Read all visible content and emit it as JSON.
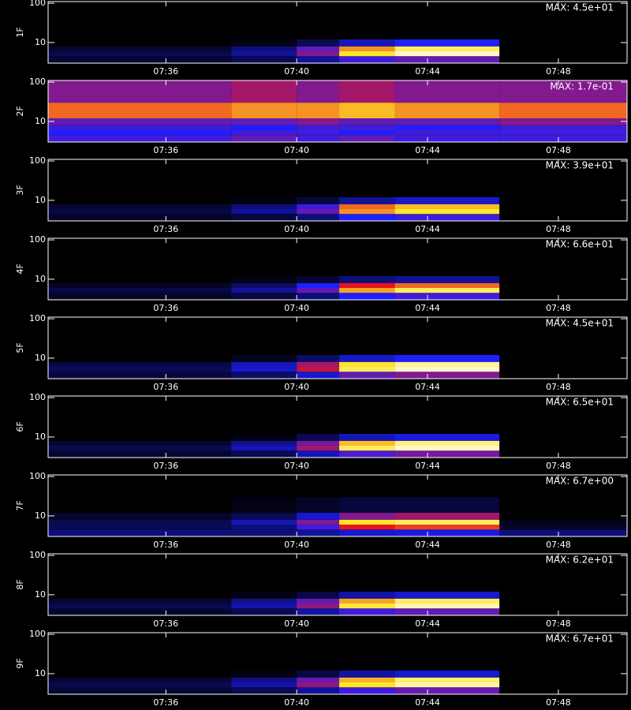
{
  "chart_data": [
    {
      "type": "heatmap",
      "ylabel": "1F",
      "annotation": "MAX: 4.5e+01",
      "log_y": true,
      "xlim": [
        32.4,
        50.1
      ],
      "xticks": [
        {
          "value": 36,
          "label": "07:36"
        },
        {
          "value": 40,
          "label": "07:40"
        },
        {
          "value": 44,
          "label": "07:44"
        },
        {
          "value": 48,
          "label": "07:48"
        }
      ],
      "ylim": [
        3,
        110
      ],
      "yticks": [
        10,
        100
      ],
      "x_edges": [
        32.4,
        38,
        40,
        41.3,
        43,
        46.2,
        50.1
      ],
      "y_edges": [
        3,
        4.5,
        6,
        8,
        12,
        30,
        110
      ],
      "z": [
        [
          0.05,
          0.08,
          0.15,
          0.3,
          0.35,
          0
        ],
        [
          0.08,
          0.15,
          0.4,
          0.8,
          0.95,
          0
        ],
        [
          0.05,
          0.12,
          0.35,
          0.7,
          0.85,
          0
        ],
        [
          0,
          0.02,
          0.08,
          0.18,
          0.25,
          0
        ],
        [
          0,
          0,
          0,
          0,
          0,
          0
        ],
        [
          0,
          0,
          0,
          0,
          0,
          0
        ]
      ]
    },
    {
      "type": "heatmap",
      "ylabel": "2F",
      "annotation": "MAX: 1.7e-01",
      "log_y": true,
      "xlim": [
        32.4,
        50.1
      ],
      "xticks": [
        {
          "value": 36,
          "label": "07:36"
        },
        {
          "value": 40,
          "label": "07:40"
        },
        {
          "value": 44,
          "label": "07:44"
        },
        {
          "value": 48,
          "label": "07:48"
        }
      ],
      "ylim": [
        3,
        110
      ],
      "yticks": [
        10,
        100
      ],
      "x_edges": [
        32.4,
        38,
        40,
        41.3,
        43,
        46.2,
        50.1
      ],
      "y_edges": [
        3,
        4.5,
        6,
        8,
        12,
        30,
        110
      ],
      "z": [
        [
          0.3,
          0.35,
          0.3,
          0.35,
          0.3,
          0.3
        ],
        [
          0.25,
          0.3,
          0.3,
          0.25,
          0.3,
          0.3
        ],
        [
          0.3,
          0.25,
          0.3,
          0.3,
          0.25,
          0.3
        ],
        [
          0.35,
          0.35,
          0.4,
          0.35,
          0.35,
          0.4
        ],
        [
          0.65,
          0.7,
          0.7,
          0.75,
          0.7,
          0.65
        ],
        [
          0.4,
          0.45,
          0.4,
          0.45,
          0.4,
          0.4
        ]
      ]
    },
    {
      "type": "heatmap",
      "ylabel": "3F",
      "annotation": "MAX: 3.9e+01",
      "log_y": true,
      "xlim": [
        32.4,
        50.1
      ],
      "xticks": [
        {
          "value": 36,
          "label": "07:36"
        },
        {
          "value": 40,
          "label": "07:40"
        },
        {
          "value": 44,
          "label": "07:44"
        },
        {
          "value": 48,
          "label": "07:48"
        }
      ],
      "ylim": [
        3,
        110
      ],
      "yticks": [
        10,
        100
      ],
      "x_edges": [
        32.4,
        38,
        40,
        41.3,
        43,
        46.2,
        50.1
      ],
      "y_edges": [
        3,
        4.5,
        6,
        8,
        12,
        30,
        110
      ],
      "z": [
        [
          0.04,
          0.06,
          0.12,
          0.25,
          0.3,
          0
        ],
        [
          0.07,
          0.15,
          0.35,
          0.7,
          0.8,
          0
        ],
        [
          0.05,
          0.12,
          0.3,
          0.65,
          0.75,
          0
        ],
        [
          0,
          0.02,
          0.06,
          0.15,
          0.2,
          0
        ],
        [
          0,
          0,
          0,
          0,
          0,
          0
        ],
        [
          0,
          0,
          0,
          0,
          0,
          0
        ]
      ]
    },
    {
      "type": "heatmap",
      "ylabel": "4F",
      "annotation": "MAX: 6.6e+01",
      "log_y": true,
      "xlim": [
        32.4,
        50.1
      ],
      "xticks": [
        {
          "value": 36,
          "label": "07:36"
        },
        {
          "value": 40,
          "label": "07:40"
        },
        {
          "value": 44,
          "label": "07:44"
        },
        {
          "value": 48,
          "label": "07:48"
        }
      ],
      "ylim": [
        3,
        110
      ],
      "yticks": [
        10,
        100
      ],
      "x_edges": [
        32.4,
        38,
        40,
        41.3,
        43,
        46.2,
        50.1
      ],
      "y_edges": [
        3,
        4.5,
        6,
        8,
        12,
        30,
        110
      ],
      "z": [
        [
          0.04,
          0.06,
          0.12,
          0.25,
          0.3,
          0
        ],
        [
          0.07,
          0.15,
          0.35,
          0.72,
          0.85,
          0
        ],
        [
          0.04,
          0.1,
          0.25,
          0.55,
          0.65,
          0
        ],
        [
          0,
          0.02,
          0.05,
          0.12,
          0.15,
          0
        ],
        [
          0,
          0,
          0,
          0,
          0,
          0
        ],
        [
          0,
          0,
          0,
          0,
          0,
          0
        ]
      ]
    },
    {
      "type": "heatmap",
      "ylabel": "5F",
      "annotation": "MAX: 4.5e+01",
      "log_y": true,
      "xlim": [
        32.4,
        50.1
      ],
      "xticks": [
        {
          "value": 36,
          "label": "07:36"
        },
        {
          "value": 40,
          "label": "07:40"
        },
        {
          "value": 44,
          "label": "07:44"
        },
        {
          "value": 48,
          "label": "07:48"
        }
      ],
      "ylim": [
        3,
        110
      ],
      "yticks": [
        10,
        100
      ],
      "x_edges": [
        32.4,
        38,
        40,
        41.3,
        43,
        46.2,
        50.1
      ],
      "y_edges": [
        3,
        4.5,
        6,
        8,
        12,
        30,
        110
      ],
      "z": [
        [
          0.06,
          0.1,
          0.2,
          0.35,
          0.4,
          0
        ],
        [
          0.09,
          0.2,
          0.5,
          0.85,
          0.95,
          0
        ],
        [
          0.07,
          0.18,
          0.45,
          0.8,
          0.9,
          0
        ],
        [
          0,
          0.03,
          0.1,
          0.2,
          0.25,
          0
        ],
        [
          0,
          0,
          0,
          0,
          0,
          0
        ],
        [
          0,
          0,
          0,
          0,
          0,
          0
        ]
      ]
    },
    {
      "type": "heatmap",
      "ylabel": "6F",
      "annotation": "MAX: 6.5e+01",
      "log_y": true,
      "xlim": [
        32.4,
        50.1
      ],
      "xticks": [
        {
          "value": 36,
          "label": "07:36"
        },
        {
          "value": 40,
          "label": "07:40"
        },
        {
          "value": 44,
          "label": "07:44"
        },
        {
          "value": 48,
          "label": "07:48"
        }
      ],
      "ylim": [
        3,
        110
      ],
      "yticks": [
        10,
        100
      ],
      "x_edges": [
        32.4,
        38,
        40,
        41.3,
        43,
        46.2,
        50.1
      ],
      "y_edges": [
        3,
        4.5,
        6,
        8,
        12,
        30,
        110
      ],
      "z": [
        [
          0.05,
          0.08,
          0.18,
          0.32,
          0.38,
          0
        ],
        [
          0.08,
          0.18,
          0.45,
          0.85,
          0.95,
          0
        ],
        [
          0.05,
          0.14,
          0.38,
          0.75,
          0.88,
          0
        ],
        [
          0,
          0.02,
          0.08,
          0.18,
          0.22,
          0
        ],
        [
          0,
          0,
          0,
          0,
          0,
          0
        ],
        [
          0,
          0,
          0,
          0,
          0,
          0
        ]
      ]
    },
    {
      "type": "heatmap",
      "ylabel": "7F",
      "annotation": "MAX: 6.7e+00",
      "log_y": true,
      "xlim": [
        32.4,
        50.1
      ],
      "xticks": [
        {
          "value": 36,
          "label": "07:36"
        },
        {
          "value": 40,
          "label": "07:40"
        },
        {
          "value": 44,
          "label": "07:44"
        },
        {
          "value": 48,
          "label": "07:48"
        }
      ],
      "ylim": [
        3,
        110
      ],
      "yticks": [
        10,
        100
      ],
      "x_edges": [
        32.4,
        38,
        40,
        41.3,
        43,
        46.2,
        50.1
      ],
      "y_edges": [
        3,
        4.5,
        6,
        8,
        12,
        30,
        110
      ],
      "z": [
        [
          0.12,
          0.12,
          0.15,
          0.2,
          0.22,
          0.12
        ],
        [
          0.08,
          0.12,
          0.3,
          0.55,
          0.6,
          0.04
        ],
        [
          0.08,
          0.18,
          0.4,
          0.8,
          0.85,
          0.03
        ],
        [
          0.04,
          0.08,
          0.2,
          0.4,
          0.45,
          0
        ],
        [
          0,
          0.02,
          0.04,
          0.06,
          0.06,
          0
        ],
        [
          0,
          0,
          0,
          0,
          0,
          0
        ]
      ]
    },
    {
      "type": "heatmap",
      "ylabel": "8F",
      "annotation": "MAX: 6.2e+01",
      "log_y": true,
      "xlim": [
        32.4,
        50.1
      ],
      "xticks": [
        {
          "value": 36,
          "label": "07:36"
        },
        {
          "value": 40,
          "label": "07:40"
        },
        {
          "value": 44,
          "label": "07:44"
        },
        {
          "value": 48,
          "label": "07:48"
        }
      ],
      "ylim": [
        3,
        110
      ],
      "yticks": [
        10,
        100
      ],
      "x_edges": [
        32.4,
        38,
        40,
        41.3,
        43,
        46.2,
        50.1
      ],
      "y_edges": [
        3,
        4.5,
        6,
        8,
        12,
        30,
        110
      ],
      "z": [
        [
          0.05,
          0.08,
          0.16,
          0.3,
          0.35,
          0
        ],
        [
          0.08,
          0.17,
          0.42,
          0.82,
          0.93,
          0
        ],
        [
          0.05,
          0.13,
          0.35,
          0.72,
          0.85,
          0
        ],
        [
          0,
          0.02,
          0.07,
          0.16,
          0.2,
          0
        ],
        [
          0,
          0,
          0,
          0,
          0,
          0
        ],
        [
          0,
          0,
          0,
          0,
          0,
          0
        ]
      ]
    },
    {
      "type": "heatmap",
      "ylabel": "9F",
      "annotation": "MAX: 6.7e+01",
      "log_y": true,
      "xlim": [
        32.4,
        50.1
      ],
      "xticks": [
        {
          "value": 36,
          "label": "07:36"
        },
        {
          "value": 40,
          "label": "07:40"
        },
        {
          "value": 44,
          "label": "07:44"
        },
        {
          "value": 48,
          "label": "07:48"
        }
      ],
      "ylim": [
        3,
        110
      ],
      "yticks": [
        10,
        100
      ],
      "x_edges": [
        32.4,
        38,
        40,
        41.3,
        43,
        46.2,
        50.1
      ],
      "y_edges": [
        3,
        4.5,
        6,
        8,
        12,
        30,
        110
      ],
      "z": [
        [
          0.05,
          0.08,
          0.15,
          0.3,
          0.36,
          0
        ],
        [
          0.08,
          0.17,
          0.42,
          0.8,
          0.92,
          0
        ],
        [
          0.05,
          0.13,
          0.36,
          0.74,
          0.86,
          0
        ],
        [
          0,
          0.02,
          0.07,
          0.16,
          0.2,
          0
        ],
        [
          0,
          0,
          0,
          0,
          0,
          0
        ],
        [
          0,
          0,
          0,
          0,
          0,
          0
        ]
      ]
    }
  ]
}
